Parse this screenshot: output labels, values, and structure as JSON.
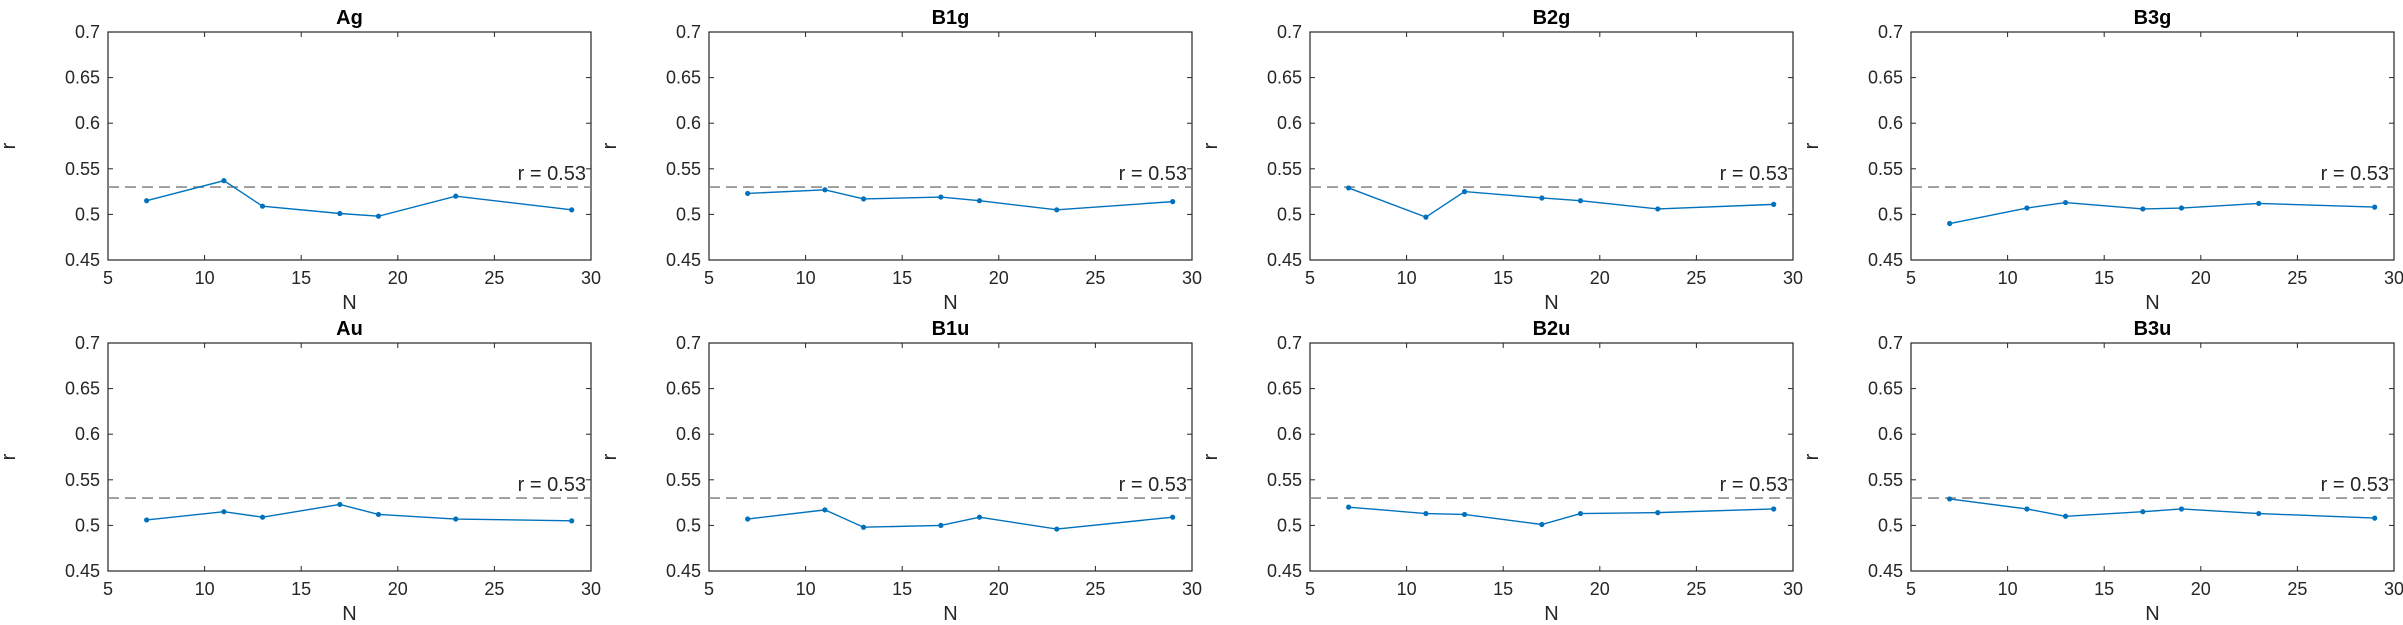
{
  "colors": {
    "series": "#0072BD",
    "refline": "#8c8c8c",
    "axis": "#262626"
  },
  "chart_data": [
    {
      "type": "line",
      "title": "Ag",
      "xlabel": "N",
      "ylabel": "r",
      "xlim": [
        5,
        30
      ],
      "ylim": [
        0.45,
        0.7
      ],
      "xticks": [
        "5",
        "10",
        "15",
        "20",
        "25",
        "30"
      ],
      "yticks": [
        "0.45",
        "0.5",
        "0.55",
        "0.6",
        "0.65",
        "0.7"
      ],
      "x": [
        7,
        11,
        13,
        17,
        19,
        23,
        29
      ],
      "y": [
        0.515,
        0.537,
        0.509,
        0.501,
        0.498,
        0.52,
        0.505
      ],
      "refline": {
        "y": 0.53,
        "label": "r = 0.53",
        "style": "dashed"
      },
      "grid": false
    },
    {
      "type": "line",
      "title": "B1g",
      "xlabel": "N",
      "ylabel": "r",
      "xlim": [
        5,
        30
      ],
      "ylim": [
        0.45,
        0.7
      ],
      "xticks": [
        "5",
        "10",
        "15",
        "20",
        "25",
        "30"
      ],
      "yticks": [
        "0.45",
        "0.5",
        "0.55",
        "0.6",
        "0.65",
        "0.7"
      ],
      "x": [
        7,
        11,
        13,
        17,
        19,
        23,
        29
      ],
      "y": [
        0.523,
        0.527,
        0.517,
        0.519,
        0.515,
        0.505,
        0.514
      ],
      "refline": {
        "y": 0.53,
        "label": "r = 0.53",
        "style": "dashed"
      },
      "grid": false
    },
    {
      "type": "line",
      "title": "B2g",
      "xlabel": "N",
      "ylabel": "r",
      "xlim": [
        5,
        30
      ],
      "ylim": [
        0.45,
        0.7
      ],
      "xticks": [
        "5",
        "10",
        "15",
        "20",
        "25",
        "30"
      ],
      "yticks": [
        "0.45",
        "0.5",
        "0.55",
        "0.6",
        "0.65",
        "0.7"
      ],
      "x": [
        7,
        11,
        13,
        17,
        19,
        23,
        29
      ],
      "y": [
        0.529,
        0.497,
        0.525,
        0.518,
        0.515,
        0.506,
        0.511
      ],
      "refline": {
        "y": 0.53,
        "label": "r = 0.53",
        "style": "dashed"
      },
      "grid": false
    },
    {
      "type": "line",
      "title": "B3g",
      "xlabel": "N",
      "ylabel": "r",
      "xlim": [
        5,
        30
      ],
      "ylim": [
        0.45,
        0.7
      ],
      "xticks": [
        "5",
        "10",
        "15",
        "20",
        "25",
        "30"
      ],
      "yticks": [
        "0.45",
        "0.5",
        "0.55",
        "0.6",
        "0.65",
        "0.7"
      ],
      "x": [
        7,
        11,
        13,
        17,
        19,
        23,
        29
      ],
      "y": [
        0.49,
        0.507,
        0.513,
        0.506,
        0.507,
        0.512,
        0.508
      ],
      "refline": {
        "y": 0.53,
        "label": "r = 0.53",
        "style": "dashed"
      },
      "grid": false
    },
    {
      "type": "line",
      "title": "Au",
      "xlabel": "N",
      "ylabel": "r",
      "xlim": [
        5,
        30
      ],
      "ylim": [
        0.45,
        0.7
      ],
      "xticks": [
        "5",
        "10",
        "15",
        "20",
        "25",
        "30"
      ],
      "yticks": [
        "0.45",
        "0.5",
        "0.55",
        "0.6",
        "0.65",
        "0.7"
      ],
      "x": [
        7,
        11,
        13,
        17,
        19,
        23,
        29
      ],
      "y": [
        0.506,
        0.515,
        0.509,
        0.523,
        0.512,
        0.507,
        0.505
      ],
      "refline": {
        "y": 0.53,
        "label": "r = 0.53",
        "style": "dashed"
      },
      "grid": false
    },
    {
      "type": "line",
      "title": "B1u",
      "xlabel": "N",
      "ylabel": "r",
      "xlim": [
        5,
        30
      ],
      "ylim": [
        0.45,
        0.7
      ],
      "xticks": [
        "5",
        "10",
        "15",
        "20",
        "25",
        "30"
      ],
      "yticks": [
        "0.45",
        "0.5",
        "0.55",
        "0.6",
        "0.65",
        "0.7"
      ],
      "x": [
        7,
        11,
        13,
        17,
        19,
        23,
        29
      ],
      "y": [
        0.507,
        0.517,
        0.498,
        0.5,
        0.509,
        0.496,
        0.509
      ],
      "refline": {
        "y": 0.53,
        "label": "r = 0.53",
        "style": "dashed"
      },
      "grid": false
    },
    {
      "type": "line",
      "title": "B2u",
      "xlabel": "N",
      "ylabel": "r",
      "xlim": [
        5,
        30
      ],
      "ylim": [
        0.45,
        0.7
      ],
      "xticks": [
        "5",
        "10",
        "15",
        "20",
        "25",
        "30"
      ],
      "yticks": [
        "0.45",
        "0.5",
        "0.55",
        "0.6",
        "0.65",
        "0.7"
      ],
      "x": [
        7,
        11,
        13,
        17,
        19,
        23,
        29
      ],
      "y": [
        0.52,
        0.513,
        0.512,
        0.501,
        0.513,
        0.514,
        0.518
      ],
      "refline": {
        "y": 0.53,
        "label": "r = 0.53",
        "style": "dashed"
      },
      "grid": false
    },
    {
      "type": "line",
      "title": "B3u",
      "xlabel": "N",
      "ylabel": "r",
      "xlim": [
        5,
        30
      ],
      "ylim": [
        0.45,
        0.7
      ],
      "xticks": [
        "5",
        "10",
        "15",
        "20",
        "25",
        "30"
      ],
      "yticks": [
        "0.45",
        "0.5",
        "0.55",
        "0.6",
        "0.65",
        "0.7"
      ],
      "x": [
        7,
        11,
        13,
        17,
        19,
        23,
        29
      ],
      "y": [
        0.529,
        0.518,
        0.51,
        0.515,
        0.518,
        0.513,
        0.508
      ],
      "refline": {
        "y": 0.53,
        "label": "r = 0.53",
        "style": "dashed"
      },
      "grid": false
    }
  ]
}
